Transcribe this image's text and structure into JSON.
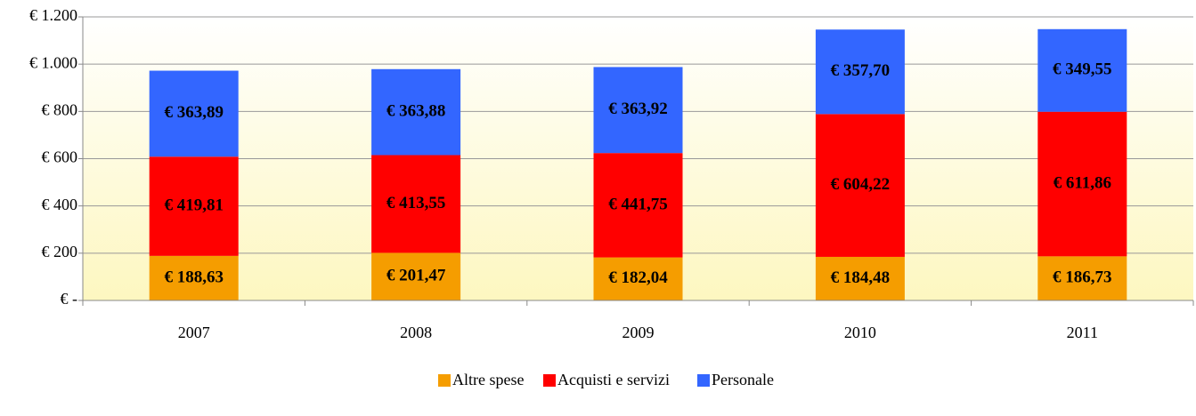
{
  "chart_data": {
    "type": "bar",
    "stacked": true,
    "categories": [
      "2007",
      "2008",
      "2009",
      "2010",
      "2011"
    ],
    "series": [
      {
        "name": "Altre spese",
        "color": "#f59d00",
        "values": [
          188.63,
          201.47,
          182.04,
          184.48,
          186.73
        ],
        "value_labels": [
          "€ 188,63",
          "€ 201,47",
          "€ 182,04",
          "€ 184,48",
          "€ 186,73"
        ]
      },
      {
        "name": "Acquisti e servizi",
        "color": "#ff0000",
        "values": [
          419.81,
          413.55,
          441.75,
          604.22,
          611.86
        ],
        "value_labels": [
          "€ 419,81",
          "€ 413,55",
          "€ 441,75",
          "€ 604,22",
          "€ 611,86"
        ]
      },
      {
        "name": "Personale",
        "color": "#3366ff",
        "values": [
          363.89,
          363.88,
          363.92,
          357.7,
          349.55
        ],
        "value_labels": [
          "€ 363,89",
          "€ 363,88",
          "€ 363,92",
          "€ 357,70",
          "€ 349,55"
        ]
      }
    ],
    "ylim": [
      0,
      1200
    ],
    "yticks": [
      {
        "value": 0,
        "label": "€ -"
      },
      {
        "value": 200,
        "label": "€ 200"
      },
      {
        "value": 400,
        "label": "€ 400"
      },
      {
        "value": 600,
        "label": "€ 600"
      },
      {
        "value": 800,
        "label": "€ 800"
      },
      {
        "value": 1000,
        "label": "€ 1.000"
      },
      {
        "value": 1200,
        "label": "€ 1.200"
      }
    ],
    "grid": true,
    "legend": "bottom"
  }
}
